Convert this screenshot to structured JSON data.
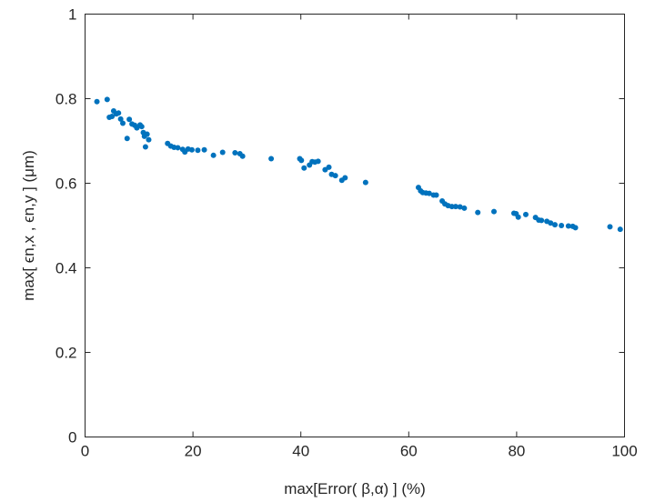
{
  "chart_data": {
    "type": "scatter",
    "xlabel": "max[Error( β,α) ] (%)",
    "ylabel": "max[ ϵn,x , ϵn,y ] (μm)",
    "xlim": [
      0,
      100
    ],
    "ylim": [
      0,
      1
    ],
    "xticks": [
      0,
      20,
      40,
      60,
      80,
      100
    ],
    "yticks": [
      0,
      0.2,
      0.4,
      0.6,
      0.8,
      1
    ],
    "xtick_labels": [
      "0",
      "20",
      "40",
      "60",
      "80",
      "100"
    ],
    "ytick_labels": [
      "0",
      "0.2",
      "0.4",
      "0.6",
      "0.8",
      "1"
    ],
    "grid": false,
    "marker_color": "#0072BD",
    "x": [
      2.2,
      4.1,
      4.5,
      5.0,
      5.3,
      5.8,
      6.2,
      6.6,
      7.0,
      7.8,
      8.2,
      8.7,
      9.2,
      9.6,
      10.2,
      10.5,
      10.8,
      11.0,
      11.2,
      11.5,
      11.8,
      15.3,
      15.9,
      16.5,
      17.2,
      18.1,
      18.5,
      19.1,
      19.8,
      20.9,
      22.1,
      23.8,
      25.5,
      27.8,
      28.7,
      29.2,
      34.5,
      39.8,
      40.1,
      40.6,
      41.6,
      42.1,
      42.6,
      43.2,
      44.5,
      45.2,
      45.7,
      46.4,
      47.6,
      48.2,
      52.0,
      61.8,
      62.2,
      62.6,
      63.2,
      63.8,
      64.6,
      65.1,
      66.2,
      66.7,
      67.3,
      68.0,
      68.7,
      69.5,
      70.3,
      72.8,
      75.8,
      79.5,
      79.9,
      80.3,
      81.7,
      83.5,
      84.1,
      84.6,
      85.6,
      86.3,
      87.1,
      88.3,
      89.6,
      90.4,
      90.9,
      97.3,
      99.2
    ],
    "y": [
      0.793,
      0.798,
      0.756,
      0.758,
      0.771,
      0.764,
      0.766,
      0.752,
      0.742,
      0.706,
      0.751,
      0.74,
      0.737,
      0.731,
      0.738,
      0.734,
      0.72,
      0.711,
      0.686,
      0.716,
      0.703,
      0.694,
      0.688,
      0.685,
      0.684,
      0.68,
      0.674,
      0.681,
      0.679,
      0.678,
      0.679,
      0.666,
      0.673,
      0.672,
      0.67,
      0.664,
      0.658,
      0.658,
      0.654,
      0.636,
      0.643,
      0.651,
      0.65,
      0.652,
      0.632,
      0.638,
      0.621,
      0.618,
      0.607,
      0.613,
      0.602,
      0.59,
      0.582,
      0.578,
      0.577,
      0.576,
      0.572,
      0.572,
      0.558,
      0.551,
      0.547,
      0.545,
      0.545,
      0.544,
      0.541,
      0.531,
      0.533,
      0.529,
      0.528,
      0.52,
      0.526,
      0.519,
      0.513,
      0.512,
      0.51,
      0.506,
      0.502,
      0.5,
      0.499,
      0.498,
      0.495,
      0.497,
      0.491
    ]
  }
}
